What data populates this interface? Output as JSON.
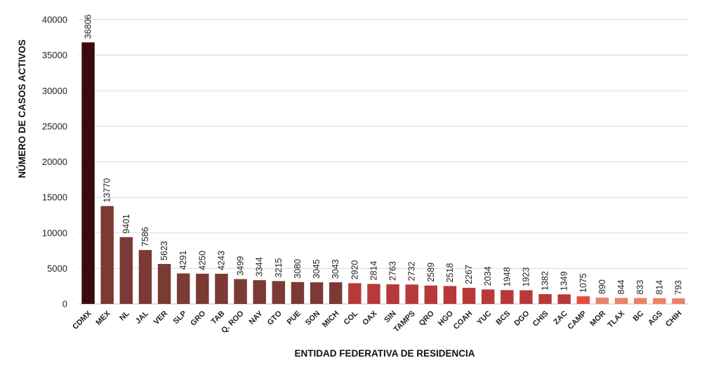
{
  "chart_data": {
    "type": "bar",
    "xlabel": "ENTIDAD FEDERATIVA DE RESIDENCIA",
    "ylabel": "NÚMERO DE CASOS ACTIVOS",
    "ylim": [
      0,
      40000
    ],
    "yticks": [
      0,
      5000,
      10000,
      15000,
      20000,
      25000,
      30000,
      35000,
      40000
    ],
    "grid": true,
    "legend": "none",
    "categories": [
      "CDMX",
      "MEX",
      "NL",
      "JAL",
      "VER",
      "SLP",
      "GRO",
      "TAB",
      "Q. ROO",
      "NAY",
      "GTO",
      "PUE",
      "SON",
      "MICH",
      "COL",
      "OAX",
      "SIN",
      "TAMPS",
      "QRO",
      "HGO",
      "COAH",
      "YUC",
      "BCS",
      "DGO",
      "CHIS",
      "ZAC",
      "CAMP",
      "MOR",
      "TLAX",
      "BC",
      "AGS",
      "CHIH"
    ],
    "values": [
      36806,
      13770,
      9401,
      7586,
      5623,
      4291,
      4250,
      4243,
      3499,
      3344,
      3215,
      3080,
      3045,
      3043,
      2920,
      2814,
      2763,
      2732,
      2589,
      2518,
      2267,
      2034,
      1948,
      1923,
      1382,
      1349,
      1075,
      890,
      844,
      833,
      814,
      793
    ],
    "colors": [
      "#3b0a0e",
      "#7b3a33",
      "#7b3a33",
      "#7b3a33",
      "#7b3a33",
      "#7b3a33",
      "#7b3a33",
      "#7b3a33",
      "#7b3a33",
      "#7b3a33",
      "#7b3a33",
      "#7b3a33",
      "#7b3a33",
      "#7b3a33",
      "#b8393a",
      "#b8393a",
      "#b8393a",
      "#b8393a",
      "#b8393a",
      "#b8393a",
      "#b8393a",
      "#b8393a",
      "#b8393a",
      "#b8393a",
      "#b8393a",
      "#b8393a",
      "#ea4a3c",
      "#e8836a",
      "#e8836a",
      "#e8836a",
      "#e8836a",
      "#e8836a"
    ]
  }
}
